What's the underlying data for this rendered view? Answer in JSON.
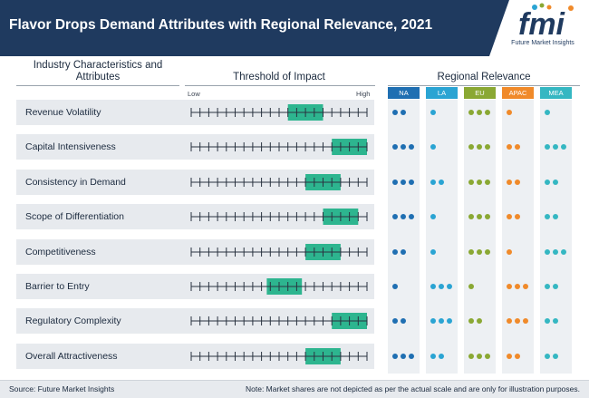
{
  "header": {
    "title": "Flavor Drops Demand Attributes with Regional Relevance, 2021",
    "logo_text": "fmi",
    "logo_subtitle": "Future Market Insights"
  },
  "columns": {
    "characteristics": "Industry Characteristics and Attributes",
    "threshold": "Threshold of Impact",
    "regional": "Regional Relevance"
  },
  "scale": {
    "low": "Low",
    "high": "High",
    "ticks": 20
  },
  "regions": [
    {
      "name": "NA",
      "color": "#1f6fb2"
    },
    {
      "name": "LA",
      "color": "#2aa4d3"
    },
    {
      "name": "EU",
      "color": "#8aa833"
    },
    {
      "name": "APAC",
      "color": "#f08a2a"
    },
    {
      "name": "MEA",
      "color": "#35b7c2"
    }
  ],
  "colors": {
    "impact_box": "#2db58f",
    "tick_line": "#2a3340"
  },
  "rows": [
    {
      "label": "Revenue Volatility",
      "impact_start": 0.55,
      "impact_end": 0.75,
      "dots": [
        2,
        1,
        3,
        1,
        1
      ]
    },
    {
      "label": "Capital Intensiveness",
      "impact_start": 0.8,
      "impact_end": 1.0,
      "dots": [
        3,
        1,
        3,
        2,
        3
      ]
    },
    {
      "label": "Consistency in Demand",
      "impact_start": 0.65,
      "impact_end": 0.85,
      "dots": [
        3,
        2,
        3,
        2,
        2
      ]
    },
    {
      "label": "Scope of Differentiation",
      "impact_start": 0.75,
      "impact_end": 0.95,
      "dots": [
        3,
        1,
        3,
        2,
        2
      ]
    },
    {
      "label": "Competitiveness",
      "impact_start": 0.65,
      "impact_end": 0.85,
      "dots": [
        2,
        1,
        3,
        1,
        3
      ]
    },
    {
      "label": "Barrier to Entry",
      "impact_start": 0.43,
      "impact_end": 0.63,
      "dots": [
        1,
        3,
        1,
        3,
        2
      ]
    },
    {
      "label": "Regulatory Complexity",
      "impact_start": 0.8,
      "impact_end": 1.0,
      "dots": [
        2,
        3,
        2,
        3,
        2
      ]
    },
    {
      "label": "Overall Attractiveness",
      "impact_start": 0.65,
      "impact_end": 0.85,
      "dots": [
        3,
        2,
        3,
        2,
        2
      ]
    }
  ],
  "footer": {
    "source": "Source: Future Market Insights",
    "note": "Note: Market shares are not depicted as per the actual scale and are only for illustration purposes."
  }
}
